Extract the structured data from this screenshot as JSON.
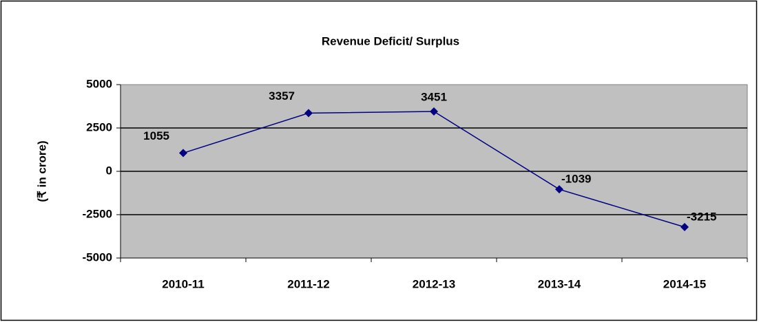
{
  "chart_data": {
    "type": "line",
    "title": "Revenue Deficit/ Surplus",
    "y_label": "(₹ in crore)",
    "categories": [
      "2010-11",
      "2011-12",
      "2012-13",
      "2013-14",
      "2014-15"
    ],
    "values": [
      1055,
      3357,
      3451,
      -1039,
      -3215
    ],
    "color": "#000080",
    "ylim": [
      -5000,
      5000
    ],
    "yticks": [
      -5000,
      -2500,
      0,
      2500,
      5000
    ],
    "grid": true
  }
}
